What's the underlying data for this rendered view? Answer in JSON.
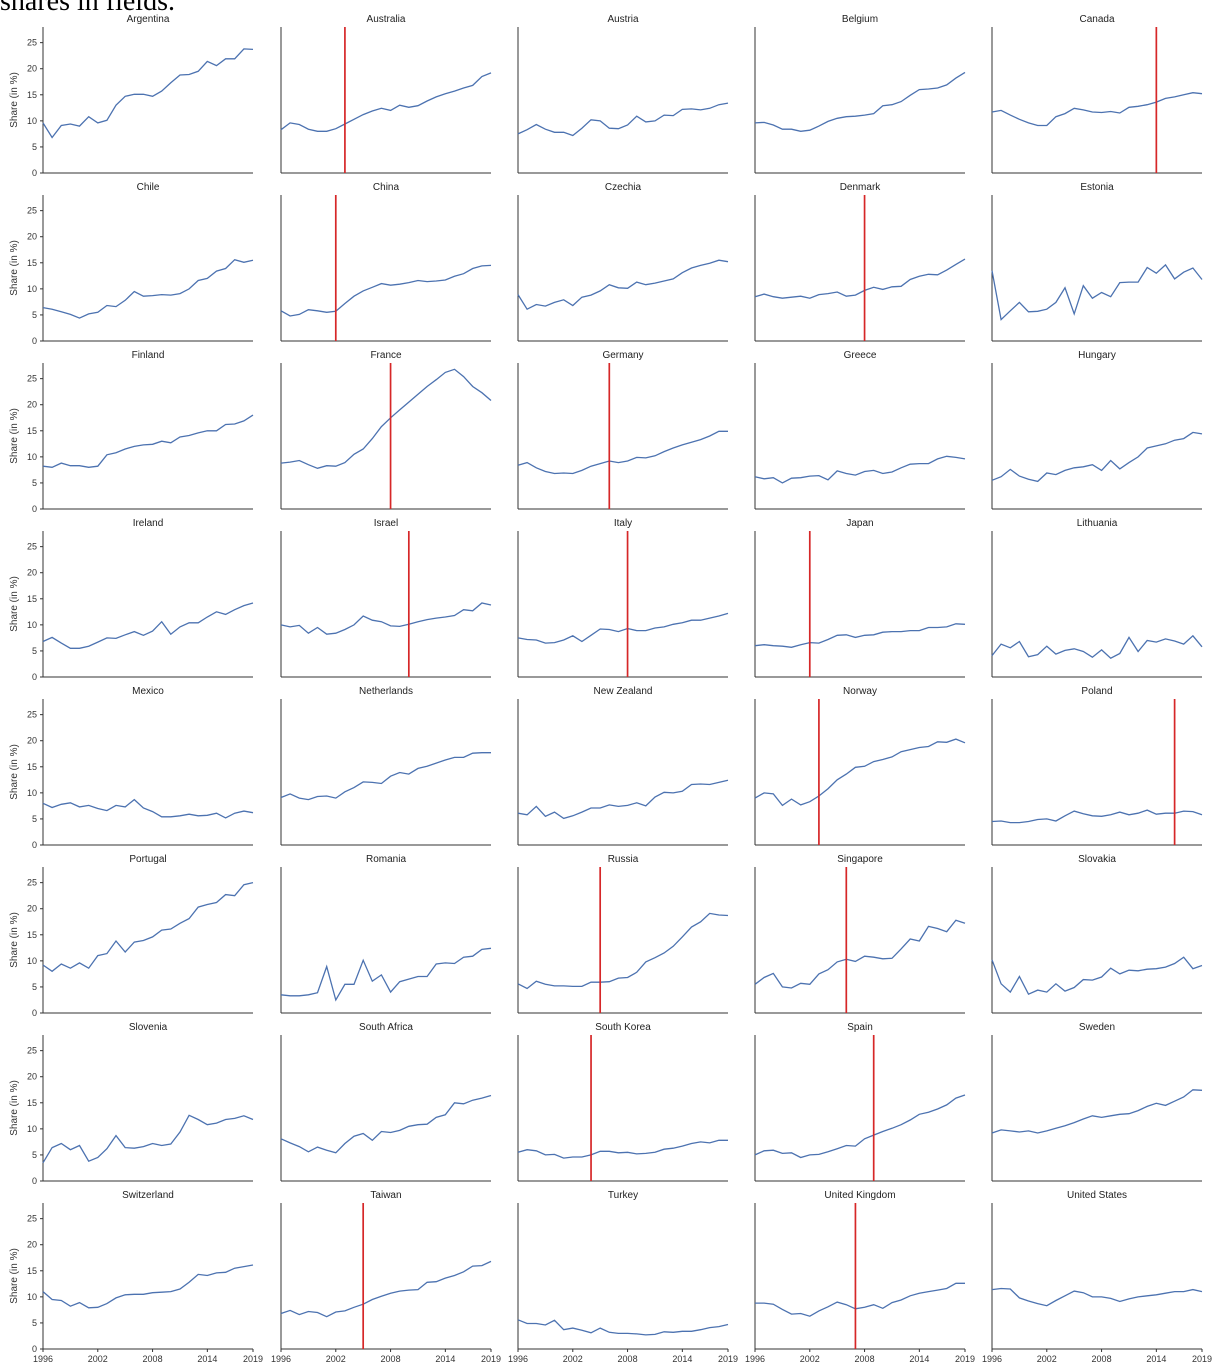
{
  "caption": "shares in fields.",
  "colors": {
    "series": "#4c72b0",
    "marker": "#d62728",
    "axis": "#333333"
  },
  "chart_data": {
    "type": "line",
    "layout": "small-multiples",
    "ylabel": "Share (in %)",
    "ylim": [
      0,
      28
    ],
    "yticks": [
      0,
      5,
      10,
      15,
      20,
      25
    ],
    "xlim": [
      1996,
      2019
    ],
    "xticks": [
      1996,
      2002,
      2008,
      2014,
      2019
    ],
    "x": [
      1996,
      1997,
      1998,
      1999,
      2000,
      2001,
      2002,
      2003,
      2004,
      2005,
      2006,
      2007,
      2008,
      2009,
      2010,
      2011,
      2012,
      2013,
      2014,
      2015,
      2016,
      2017,
      2018,
      2019
    ],
    "panels": [
      {
        "title": "Argentina",
        "marker_year": null,
        "values": [
          9.6,
          6.8,
          9.1,
          9.4,
          9.0,
          10.8,
          9.6,
          10.1,
          13,
          14.7,
          15.1,
          15.1,
          14.7,
          15.7,
          17.3,
          18.8,
          18.9,
          19.5,
          21.4,
          20.6,
          21.9,
          21.9,
          23.8,
          23.7
        ]
      },
      {
        "title": "Australia",
        "marker_year": 2003,
        "values": [
          8.3,
          9.6,
          9.3,
          8.4,
          8.0,
          8.0,
          8.5,
          9.4,
          10.3,
          11.2,
          11.9,
          12.4,
          12.0,
          13.0,
          12.6,
          12.9,
          13.8,
          14.6,
          15.2,
          15.7,
          16.3,
          16.8,
          18.5,
          19.2
        ]
      },
      {
        "title": "Austria",
        "marker_year": null,
        "values": [
          7.5,
          8.3,
          9.3,
          8.4,
          7.8,
          7.8,
          7.2,
          8.6,
          10.2,
          10.0,
          8.6,
          8.5,
          9.2,
          10.9,
          9.8,
          10.0,
          11.1,
          11.0,
          12.2,
          12.3,
          12.1,
          12.4,
          13.1,
          13.4
        ]
      },
      {
        "title": "Belgium",
        "marker_year": null,
        "values": [
          9.6,
          9.7,
          9.2,
          8.4,
          8.4,
          8.0,
          8.2,
          9.0,
          9.9,
          10.5,
          10.8,
          10.9,
          11.1,
          11.4,
          12.9,
          13.1,
          13.7,
          14.9,
          16.0,
          16.1,
          16.3,
          16.9,
          18.2,
          19.3
        ]
      },
      {
        "title": "Canada",
        "marker_year": 2014,
        "values": [
          11.7,
          12.0,
          11.1,
          10.3,
          9.6,
          9.1,
          9.1,
          10.8,
          11.4,
          12.4,
          12.1,
          11.7,
          11.6,
          11.8,
          11.5,
          12.6,
          12.8,
          13.1,
          13.6,
          14.3,
          14.6,
          15.0,
          15.4,
          15.2
        ]
      },
      {
        "title": "Chile",
        "marker_year": null,
        "values": [
          6.4,
          6.1,
          5.6,
          5.1,
          4.4,
          5.2,
          5.5,
          6.8,
          6.6,
          7.8,
          9.5,
          8.6,
          8.7,
          8.9,
          8.8,
          9.1,
          10.0,
          11.6,
          12.0,
          13.4,
          13.9,
          15.6,
          15.1,
          15.5
        ]
      },
      {
        "title": "China",
        "marker_year": 2002,
        "values": [
          5.8,
          4.8,
          5.1,
          6.0,
          5.8,
          5.5,
          5.7,
          7.2,
          8.6,
          9.6,
          10.3,
          11.0,
          10.7,
          10.9,
          11.2,
          11.6,
          11.4,
          11.5,
          11.7,
          12.4,
          12.9,
          13.9,
          14.4,
          14.5
        ]
      },
      {
        "title": "Czechia",
        "marker_year": null,
        "values": [
          8.9,
          6.1,
          7.0,
          6.7,
          7.4,
          7.9,
          6.8,
          8.4,
          8.8,
          9.6,
          10.8,
          10.2,
          10.1,
          11.3,
          10.8,
          11.1,
          11.5,
          11.9,
          13.1,
          14.0,
          14.5,
          14.9,
          15.5,
          15.2
        ]
      },
      {
        "title": "Denmark",
        "marker_year": 2008,
        "values": [
          8.5,
          9.0,
          8.5,
          8.2,
          8.4,
          8.6,
          8.2,
          8.9,
          9.1,
          9.4,
          8.6,
          8.8,
          9.7,
          10.3,
          9.9,
          10.4,
          10.5,
          11.8,
          12.4,
          12.8,
          12.7,
          13.6,
          14.7,
          15.7
        ]
      },
      {
        "title": "Estonia",
        "marker_year": null,
        "values": [
          13.5,
          4.1,
          5.8,
          7.4,
          5.6,
          5.7,
          6.1,
          7.4,
          10.2,
          5.2,
          10.6,
          8.2,
          9.3,
          8.5,
          11.2,
          11.3,
          11.3,
          14.1,
          13.0,
          14.6,
          11.9,
          13.2,
          14.0,
          11.8
        ]
      },
      {
        "title": "Finland",
        "marker_year": null,
        "values": [
          8.2,
          8.0,
          8.8,
          8.3,
          8.3,
          8.0,
          8.2,
          10.4,
          10.8,
          11.5,
          12.0,
          12.3,
          12.4,
          13.0,
          12.7,
          13.8,
          14.1,
          14.6,
          15.0,
          15.0,
          16.2,
          16.3,
          16.9,
          18.0
        ]
      },
      {
        "title": "France",
        "marker_year": 2008,
        "values": [
          8.8,
          9.0,
          9.3,
          8.5,
          7.8,
          8.3,
          8.2,
          8.9,
          10.5,
          11.5,
          13.5,
          15.8,
          17.5,
          19.0,
          20.5,
          22.0,
          23.5,
          24.8,
          26.2,
          26.8,
          25.4,
          23.5,
          22.3,
          20.8
        ]
      },
      {
        "title": "Germany",
        "marker_year": 2006,
        "values": [
          8.4,
          8.9,
          7.9,
          7.2,
          6.8,
          6.9,
          6.8,
          7.4,
          8.2,
          8.7,
          9.2,
          8.9,
          9.2,
          9.9,
          9.8,
          10.2,
          11.0,
          11.7,
          12.3,
          12.8,
          13.3,
          14.0,
          14.9,
          14.9
        ]
      },
      {
        "title": "Greece",
        "marker_year": null,
        "values": [
          6.2,
          5.8,
          6.0,
          5.0,
          5.9,
          6.0,
          6.3,
          6.4,
          5.6,
          7.3,
          6.8,
          6.5,
          7.2,
          7.4,
          6.8,
          7.1,
          7.9,
          8.6,
          8.7,
          8.7,
          9.6,
          10.1,
          9.9,
          9.6
        ]
      },
      {
        "title": "Hungary",
        "marker_year": null,
        "values": [
          5.5,
          6.2,
          7.6,
          6.3,
          5.7,
          5.3,
          6.9,
          6.6,
          7.4,
          7.9,
          8.1,
          8.5,
          7.4,
          9.3,
          7.7,
          8.9,
          10.0,
          11.7,
          12.1,
          12.5,
          13.2,
          13.5,
          14.7,
          14.4
        ]
      },
      {
        "title": "Ireland",
        "marker_year": null,
        "values": [
          6.8,
          7.6,
          6.5,
          5.5,
          5.5,
          5.9,
          6.7,
          7.5,
          7.4,
          8.1,
          8.7,
          8.0,
          8.8,
          10.6,
          8.2,
          9.6,
          10.4,
          10.4,
          11.5,
          12.5,
          12.0,
          12.9,
          13.7,
          14.2
        ]
      },
      {
        "title": "Israel",
        "marker_year": 2010,
        "values": [
          10.0,
          9.6,
          9.9,
          8.4,
          9.5,
          8.2,
          8.4,
          9.1,
          10.0,
          11.7,
          10.9,
          10.6,
          9.8,
          9.7,
          10.1,
          10.6,
          11.0,
          11.3,
          11.5,
          11.8,
          12.9,
          12.7,
          14.2,
          13.8
        ]
      },
      {
        "title": "Italy",
        "marker_year": 2008,
        "values": [
          7.5,
          7.2,
          7.1,
          6.5,
          6.6,
          7.1,
          7.9,
          6.8,
          8.0,
          9.2,
          9.1,
          8.7,
          9.3,
          8.9,
          8.9,
          9.4,
          9.6,
          10.1,
          10.4,
          10.9,
          10.9,
          11.3,
          11.7,
          12.2
        ]
      },
      {
        "title": "Japan",
        "marker_year": 2002,
        "values": [
          6.0,
          6.2,
          6.0,
          5.9,
          5.7,
          6.2,
          6.6,
          6.5,
          7.2,
          8.0,
          8.1,
          7.6,
          8.0,
          8.1,
          8.6,
          8.7,
          8.7,
          8.9,
          8.9,
          9.5,
          9.5,
          9.6,
          10.2,
          10.1
        ]
      },
      {
        "title": "Lithuania",
        "marker_year": null,
        "values": [
          4.1,
          6.3,
          5.6,
          6.8,
          3.9,
          4.3,
          5.9,
          4.4,
          5.1,
          5.4,
          4.9,
          3.8,
          5.2,
          3.6,
          4.5,
          7.6,
          4.9,
          7.0,
          6.7,
          7.3,
          6.9,
          6.3,
          7.9,
          5.8
        ]
      },
      {
        "title": "Mexico",
        "marker_year": null,
        "values": [
          8.0,
          7.2,
          7.8,
          8.1,
          7.3,
          7.6,
          7.0,
          6.6,
          7.6,
          7.3,
          8.7,
          7.1,
          6.4,
          5.4,
          5.4,
          5.6,
          5.9,
          5.6,
          5.7,
          6.1,
          5.2,
          6.1,
          6.5,
          6.2
        ]
      },
      {
        "title": "Netherlands",
        "marker_year": null,
        "values": [
          9.1,
          9.8,
          9.0,
          8.7,
          9.3,
          9.4,
          9.0,
          10.2,
          11.0,
          12.1,
          12.0,
          11.8,
          13.2,
          13.9,
          13.6,
          14.7,
          15.1,
          15.7,
          16.3,
          16.8,
          16.8,
          17.6,
          17.7,
          17.7
        ]
      },
      {
        "title": "New Zealand",
        "marker_year": null,
        "values": [
          6.1,
          5.8,
          7.4,
          5.5,
          6.3,
          5.1,
          5.6,
          6.3,
          7.1,
          7.1,
          7.7,
          7.4,
          7.6,
          8.1,
          7.5,
          9.2,
          10.1,
          10.0,
          10.3,
          11.6,
          11.7,
          11.6,
          12.0,
          12.4
        ]
      },
      {
        "title": "Norway",
        "marker_year": 2003,
        "values": [
          9.0,
          10.0,
          9.8,
          7.6,
          8.8,
          7.7,
          8.3,
          9.4,
          10.8,
          12.5,
          13.6,
          14.9,
          15.1,
          16.0,
          16.4,
          16.9,
          17.9,
          18.3,
          18.7,
          18.9,
          19.8,
          19.7,
          20.3,
          19.6
        ]
      },
      {
        "title": "Poland",
        "marker_year": 2016,
        "values": [
          4.5,
          4.6,
          4.3,
          4.3,
          4.5,
          4.9,
          5.0,
          4.6,
          5.6,
          6.5,
          6.0,
          5.6,
          5.5,
          5.8,
          6.3,
          5.8,
          6.1,
          6.7,
          5.9,
          6.1,
          6.1,
          6.5,
          6.4,
          5.8
        ]
      },
      {
        "title": "Portugal",
        "marker_year": null,
        "values": [
          9.2,
          8.0,
          9.4,
          8.6,
          9.6,
          8.6,
          11.0,
          11.4,
          13.8,
          11.7,
          13.6,
          13.9,
          14.6,
          15.9,
          16.1,
          17.2,
          18.1,
          20.3,
          20.8,
          21.2,
          22.7,
          22.5,
          24.6,
          25.0
        ]
      },
      {
        "title": "Romania",
        "marker_year": null,
        "values": [
          3.5,
          3.3,
          3.3,
          3.5,
          3.9,
          8.9,
          2.5,
          5.5,
          5.5,
          10.1,
          6.1,
          7.3,
          4.0,
          6.0,
          6.5,
          7.0,
          7.0,
          9.4,
          9.6,
          9.5,
          10.7,
          10.9,
          12.2,
          12.4
        ]
      },
      {
        "title": "Russia",
        "marker_year": 2005,
        "values": [
          5.6,
          4.7,
          6.1,
          5.5,
          5.2,
          5.2,
          5.1,
          5.1,
          5.9,
          5.9,
          6.0,
          6.7,
          6.8,
          7.8,
          9.8,
          10.6,
          11.5,
          12.8,
          14.6,
          16.5,
          17.5,
          19.1,
          18.8,
          18.7
        ]
      },
      {
        "title": "Singapore",
        "marker_year": 2006,
        "values": [
          5.5,
          6.8,
          7.6,
          5.0,
          4.8,
          5.7,
          5.5,
          7.5,
          8.3,
          9.8,
          10.3,
          9.9,
          10.9,
          10.7,
          10.4,
          10.5,
          12.3,
          14.2,
          13.8,
          16.6,
          16.2,
          15.6,
          17.8,
          17.2
        ]
      },
      {
        "title": "Slovakia",
        "marker_year": null,
        "values": [
          10.2,
          5.6,
          4.0,
          7.0,
          3.6,
          4.4,
          4.0,
          5.6,
          4.2,
          4.9,
          6.4,
          6.3,
          6.9,
          8.6,
          7.5,
          8.2,
          8.1,
          8.4,
          8.5,
          8.8,
          9.5,
          10.7,
          8.5,
          9.1
        ]
      },
      {
        "title": "Slovenia",
        "marker_year": null,
        "values": [
          3.5,
          6.4,
          7.2,
          6.0,
          6.8,
          3.8,
          4.5,
          6.2,
          8.7,
          6.4,
          6.3,
          6.6,
          7.2,
          6.8,
          7.1,
          9.4,
          12.6,
          11.8,
          10.8,
          11.1,
          11.8,
          12.0,
          12.5,
          11.8
        ]
      },
      {
        "title": "South Africa",
        "marker_year": null,
        "values": [
          8.1,
          7.3,
          6.6,
          5.6,
          6.5,
          5.9,
          5.4,
          7.2,
          8.6,
          9.1,
          7.8,
          9.5,
          9.3,
          9.7,
          10.5,
          10.8,
          10.9,
          12.2,
          12.7,
          15.0,
          14.8,
          15.5,
          15.9,
          16.4
        ]
      },
      {
        "title": "South Korea",
        "marker_year": 2004,
        "values": [
          5.5,
          6.0,
          5.8,
          5.0,
          5.1,
          4.4,
          4.6,
          4.6,
          5.0,
          5.7,
          5.7,
          5.4,
          5.5,
          5.2,
          5.3,
          5.5,
          6.1,
          6.3,
          6.7,
          7.2,
          7.5,
          7.3,
          7.8,
          7.8
        ]
      },
      {
        "title": "Spain",
        "marker_year": 2009,
        "values": [
          5.0,
          5.8,
          5.9,
          5.3,
          5.4,
          4.5,
          5.0,
          5.1,
          5.6,
          6.2,
          6.8,
          6.7,
          8.1,
          8.8,
          9.5,
          10.1,
          10.8,
          11.7,
          12.8,
          13.2,
          13.8,
          14.6,
          15.9,
          16.5
        ]
      },
      {
        "title": "Sweden",
        "marker_year": null,
        "values": [
          9.2,
          9.8,
          9.6,
          9.4,
          9.6,
          9.2,
          9.6,
          10.1,
          10.6,
          11.2,
          11.9,
          12.5,
          12.2,
          12.5,
          12.8,
          12.9,
          13.5,
          14.3,
          14.9,
          14.5,
          15.3,
          16.1,
          17.5,
          17.4
        ]
      },
      {
        "title": "Switzerland",
        "marker_year": null,
        "values": [
          11.0,
          9.5,
          9.3,
          8.2,
          8.9,
          7.9,
          8.0,
          8.7,
          9.8,
          10.4,
          10.5,
          10.5,
          10.8,
          10.9,
          11.0,
          11.5,
          12.8,
          14.3,
          14.1,
          14.6,
          14.7,
          15.5,
          15.8,
          16.1
        ]
      },
      {
        "title": "Taiwan",
        "marker_year": 2005,
        "values": [
          6.8,
          7.4,
          6.6,
          7.2,
          7.0,
          6.2,
          7.1,
          7.3,
          8.0,
          8.6,
          9.5,
          10.1,
          10.7,
          11.1,
          11.3,
          11.4,
          12.8,
          12.9,
          13.6,
          14.1,
          14.8,
          15.9,
          16.0,
          16.8
        ]
      },
      {
        "title": "Turkey",
        "marker_year": null,
        "values": [
          5.6,
          4.9,
          4.9,
          4.6,
          5.5,
          3.7,
          4.0,
          3.6,
          3.1,
          4.0,
          3.2,
          3.0,
          3.0,
          2.9,
          2.7,
          2.8,
          3.3,
          3.2,
          3.4,
          3.4,
          3.7,
          4.1,
          4.3,
          4.7
        ]
      },
      {
        "title": "United Kingdom",
        "marker_year": 2007,
        "values": [
          8.8,
          8.8,
          8.6,
          7.6,
          6.7,
          6.8,
          6.3,
          7.3,
          8.1,
          9.0,
          8.5,
          7.7,
          8.0,
          8.5,
          7.8,
          8.9,
          9.4,
          10.2,
          10.7,
          11.0,
          11.3,
          11.6,
          12.6,
          12.6
        ]
      },
      {
        "title": "United States",
        "marker_year": null,
        "values": [
          11.4,
          11.6,
          11.5,
          9.8,
          9.2,
          8.7,
          8.3,
          9.3,
          10.2,
          11.1,
          10.8,
          10.0,
          10.0,
          9.7,
          9.1,
          9.6,
          10.0,
          10.2,
          10.4,
          10.7,
          11.0,
          11.0,
          11.4,
          11.0
        ]
      }
    ]
  }
}
